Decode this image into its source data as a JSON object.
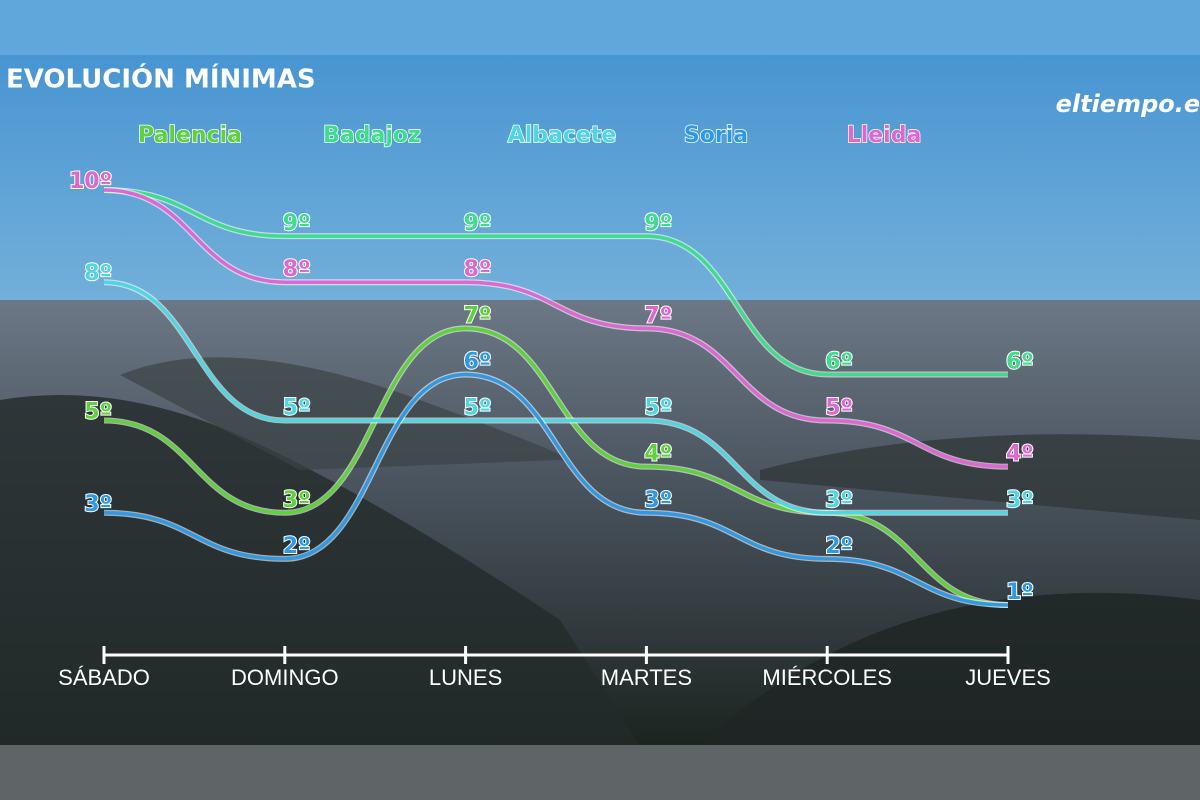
{
  "chart_data": {
    "type": "line",
    "title": "EVOLUCIÓN MÍNIMAS",
    "logo": "eltiempo.es",
    "categories": [
      "SÁBADO",
      "DOMINGO",
      "LUNES",
      "MARTES",
      "MIÉRCOLES",
      "JUEVES"
    ],
    "series": [
      {
        "name": "Palencia",
        "color": "#5fd13a",
        "values": [
          5,
          3,
          7,
          4,
          3,
          1
        ],
        "value_labels": [
          "5º",
          "3º",
          "7º",
          "4º",
          null,
          null
        ]
      },
      {
        "name": "Badajoz",
        "color": "#3fdc8c",
        "values": [
          10,
          9,
          9,
          9,
          6,
          6
        ],
        "value_labels": [
          null,
          "9º",
          "9º",
          "9º",
          "6º",
          "6º"
        ]
      },
      {
        "name": "Albacete",
        "color": "#4fd6e2",
        "values": [
          8,
          5,
          5,
          5,
          3,
          3
        ],
        "value_labels": [
          "8º",
          "5º",
          "5º",
          "5º",
          "3º",
          "3º"
        ]
      },
      {
        "name": "Soria",
        "color": "#2e9ae6",
        "values": [
          3,
          2,
          6,
          3,
          2,
          1
        ],
        "value_labels": [
          "3º",
          "2º",
          "6º",
          "3º",
          "2º",
          "1º"
        ]
      },
      {
        "name": "Lleida",
        "color": "#e066d4",
        "values": [
          10,
          8,
          8,
          7,
          5,
          4
        ],
        "value_labels": [
          "10º",
          "8º",
          "8º",
          "7º",
          "5º",
          "4º"
        ]
      }
    ]
  }
}
